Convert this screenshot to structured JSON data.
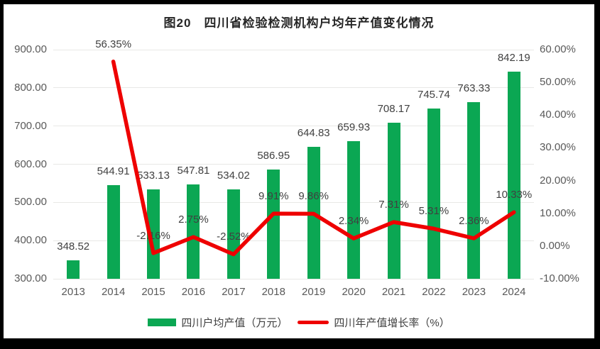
{
  "title": "图20　四川省检验检测机构户均年产值变化情况",
  "legend": {
    "bar_label": "四川户均产值（万元）",
    "line_label": "四川年产值增长率（%）"
  },
  "colors": {
    "bar": "#0ba753",
    "line": "#ee0000",
    "grid": "#e8e8e6",
    "axis_text": "#595959",
    "label_text": "#404040",
    "frame": "#000000",
    "panel": "#ffffff"
  },
  "chart_data": {
    "type": "bar+line combo",
    "title": "图20　四川省检验检测机构户均年产值变化情况",
    "categories": [
      "2013",
      "2014",
      "2015",
      "2016",
      "2017",
      "2018",
      "2019",
      "2020",
      "2021",
      "2022",
      "2023",
      "2024"
    ],
    "series": [
      {
        "name": "四川户均产值（万元）",
        "type": "bar",
        "axis": "left",
        "values": [
          348.52,
          544.91,
          533.13,
          547.81,
          534.02,
          586.95,
          644.83,
          659.93,
          708.17,
          745.74,
          763.33,
          842.19
        ]
      },
      {
        "name": "四川年产值增长率（%）",
        "type": "line",
        "axis": "right",
        "values": [
          null,
          56.35,
          -2.16,
          2.75,
          -2.52,
          9.91,
          9.86,
          2.34,
          7.31,
          5.31,
          2.36,
          10.33
        ]
      }
    ],
    "left_axis": {
      "min": 300,
      "max": 900,
      "ticks": [
        "900.00",
        "800.00",
        "700.00",
        "600.00",
        "500.00",
        "400.00",
        "300.00"
      ]
    },
    "right_axis": {
      "min": -10,
      "max": 60,
      "ticks": [
        "60.00%",
        "50.00%",
        "40.00%",
        "30.00%",
        "20.00%",
        "10.00%",
        "0.00%",
        "-10.00%"
      ]
    },
    "grid": true,
    "legend_position": "bottom",
    "data_labels": true
  }
}
